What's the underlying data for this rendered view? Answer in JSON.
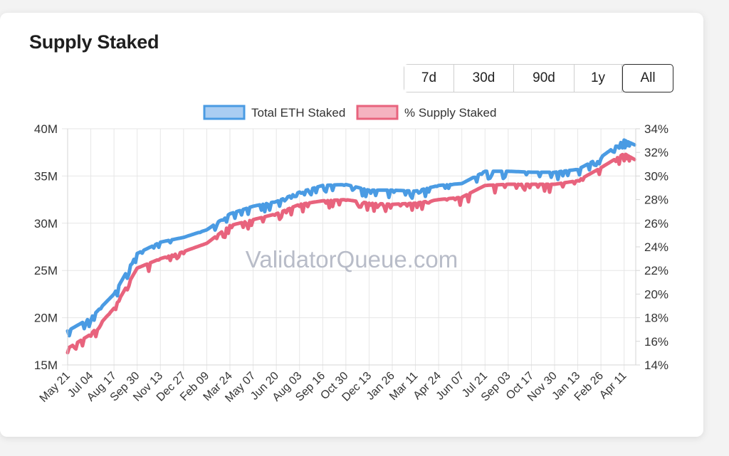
{
  "card": {
    "title": "Supply Staked",
    "watermark": "ValidatorQueue.com"
  },
  "range_buttons": [
    {
      "label": "7d",
      "active": false
    },
    {
      "label": "30d",
      "active": false
    },
    {
      "label": "90d",
      "active": false
    },
    {
      "label": "1y",
      "active": false
    },
    {
      "label": "All",
      "active": true
    }
  ],
  "chart_data": {
    "type": "line",
    "title": "",
    "legend_position": "top",
    "grid": true,
    "x_tick_labels": [
      "May 21",
      "Jul 04",
      "Aug 17",
      "Sep 30",
      "Nov 13",
      "Dec 27",
      "Feb 09",
      "Mar 24",
      "May 07",
      "Jun 20",
      "Aug 03",
      "Sep 16",
      "Oct 30",
      "Dec 13",
      "Jan 26",
      "Mar 11",
      "Apr 24",
      "Jun 07",
      "Jul 21",
      "Sep 03",
      "Oct 17",
      "Nov 30",
      "Jan 13",
      "Feb 26",
      "Apr 11"
    ],
    "y_left": {
      "min": 15,
      "max": 40,
      "ticks": [
        "15M",
        "20M",
        "25M",
        "30M",
        "35M",
        "40M"
      ]
    },
    "y_right": {
      "min": 14,
      "max": 34,
      "ticks": [
        "14%",
        "16%",
        "18%",
        "20%",
        "22%",
        "24%",
        "26%",
        "28%",
        "30%",
        "32%",
        "34%"
      ]
    },
    "series": [
      {
        "name": "Total ETH Staked",
        "axis": "left",
        "unit": "M",
        "color": "#4a9be3",
        "fill": "#aacdf2",
        "x": [
          "May 21",
          "Jul 04",
          "Aug 17",
          "Sep 30",
          "Nov 13",
          "Dec 27",
          "Feb 09",
          "Mar 24",
          "May 07",
          "Jun 20",
          "Aug 03",
          "Sep 16",
          "Oct 30",
          "Dec 13",
          "Jan 26",
          "Mar 11",
          "Apr 24",
          "Jun 07",
          "Jul 21",
          "Sep 03",
          "Oct 17",
          "Nov 30",
          "Jan 13",
          "Feb 26",
          "Apr 11",
          "May 01"
        ],
        "values": [
          18.6,
          20.0,
          22.5,
          26.8,
          28.0,
          28.5,
          29.3,
          31.0,
          31.8,
          32.3,
          33.3,
          34.0,
          34.1,
          33.5,
          33.5,
          33.4,
          34.0,
          34.2,
          35.5,
          35.5,
          35.4,
          35.4,
          35.7,
          37.0,
          38.8,
          38.3
        ]
      },
      {
        "name": "% Supply Staked",
        "axis": "right",
        "unit": "%",
        "color": "#e8637d",
        "fill": "#f5b3c0",
        "x": [
          "May 21",
          "Jul 04",
          "Aug 17",
          "Sep 30",
          "Nov 13",
          "Dec 27",
          "Feb 09",
          "Mar 24",
          "May 07",
          "Jun 20",
          "Aug 03",
          "Sep 16",
          "Oct 30",
          "Dec 13",
          "Jan 26",
          "Mar 11",
          "Apr 24",
          "Jun 07",
          "Jul 21",
          "Sep 03",
          "Oct 17",
          "Nov 30",
          "Jan 13",
          "Feb 26",
          "Apr 11",
          "May 01"
        ],
        "values": [
          15.4,
          16.6,
          18.8,
          22.2,
          23.0,
          23.6,
          24.3,
          25.8,
          26.3,
          26.8,
          27.6,
          27.9,
          28.0,
          27.7,
          27.6,
          27.7,
          28.0,
          28.2,
          29.2,
          29.3,
          29.3,
          29.3,
          29.6,
          30.7,
          31.9,
          31.4
        ]
      }
    ]
  }
}
